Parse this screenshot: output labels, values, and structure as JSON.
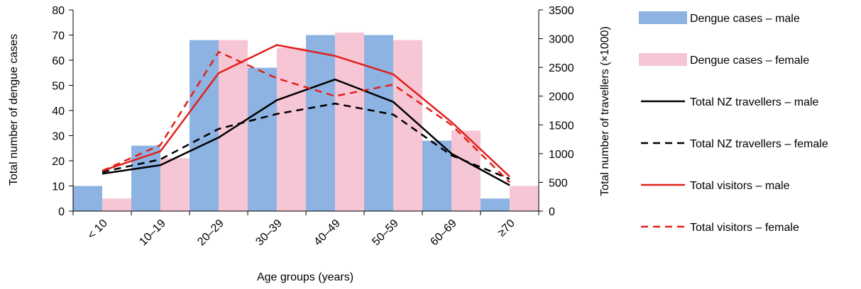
{
  "chart_data": {
    "type": "bar",
    "categories": [
      "< 10",
      "10–19",
      "20–29",
      "30–39",
      "40–49",
      "50–59",
      "60–69",
      "≥70"
    ],
    "xlabel": "Age groups (years)",
    "ylabel_left": "Total number of dengue cases",
    "ylabel_right": "Total number of travellers (×1000)",
    "ylim_left": [
      0,
      80
    ],
    "ylim_right": [
      0,
      3500
    ],
    "yticks_left": [
      "0",
      "10",
      "20",
      "30",
      "40",
      "50",
      "60",
      "70",
      "80"
    ],
    "yticks_right": [
      "0",
      "500",
      "1000",
      "1500",
      "2000",
      "2500",
      "3000",
      "3500"
    ],
    "grid": false,
    "legend_position": "right",
    "bar_series": [
      {
        "name": "Dengue cases – male",
        "axis": "left",
        "color": "#8db3e2",
        "values": [
          10,
          26,
          68,
          57,
          70,
          70,
          28,
          5
        ]
      },
      {
        "name": "Dengue cases – female",
        "axis": "left",
        "color": "#f7c6d4",
        "values": [
          5,
          21,
          68,
          65,
          71,
          68,
          32,
          10
        ]
      }
    ],
    "line_series": [
      {
        "name": "Total NZ travellers – male",
        "axis": "right",
        "color": "#000000",
        "dash": "solid",
        "values": [
          650,
          800,
          1280,
          1930,
          2290,
          1900,
          1000,
          450
        ]
      },
      {
        "name": "Total NZ travellers – female",
        "axis": "right",
        "color": "#000000",
        "dash": "dashed",
        "values": [
          680,
          900,
          1430,
          1690,
          1870,
          1680,
          970,
          560
        ]
      },
      {
        "name": "Total visitors – male",
        "axis": "right",
        "color": "#e0201b",
        "dash": "solid",
        "values": [
          700,
          1040,
          2400,
          2890,
          2700,
          2380,
          1550,
          600
        ]
      },
      {
        "name": "Total visitors – female",
        "axis": "right",
        "color": "#e0201b",
        "dash": "dashed",
        "values": [
          700,
          1150,
          2770,
          2310,
          2000,
          2200,
          1500,
          500
        ]
      }
    ]
  }
}
